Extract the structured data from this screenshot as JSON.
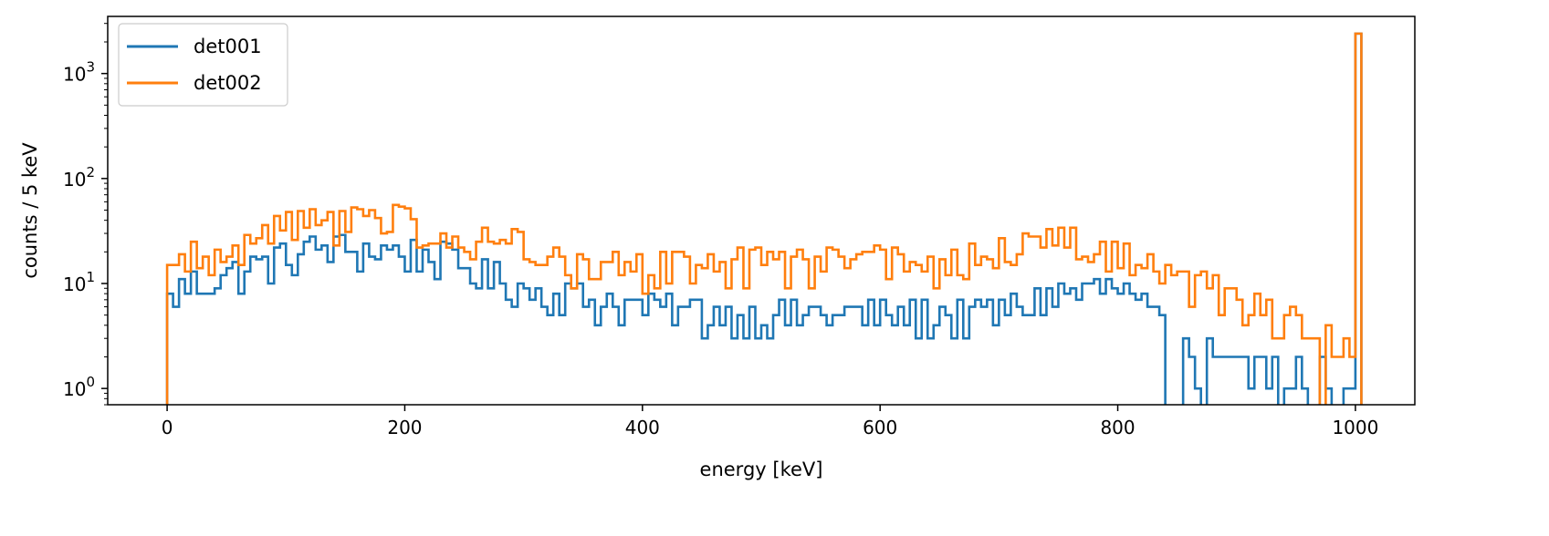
{
  "chart_data": {
    "type": "histogram",
    "title": "",
    "xlabel": "energy [keV]",
    "ylabel": "counts / 5 keV",
    "xscale": "linear",
    "yscale": "log",
    "xlim": [
      -50,
      1050
    ],
    "ylim": [
      0.7,
      3500
    ],
    "x_ticks": [
      0,
      200,
      400,
      600,
      800,
      1000
    ],
    "x_tick_labels": [
      "0",
      "200",
      "400",
      "600",
      "800",
      "1000"
    ],
    "y_ticks": [
      1,
      10,
      100,
      1000
    ],
    "y_tick_labels": [
      {
        "base": "10",
        "exp": "0"
      },
      {
        "base": "10",
        "exp": "1"
      },
      {
        "base": "10",
        "exp": "2"
      },
      {
        "base": "10",
        "exp": "3"
      }
    ],
    "bin_width_kev": 5,
    "grid": false,
    "legend_position": "top-left",
    "series": [
      {
        "name": "det001",
        "color": "#1f77b4",
        "bins_start": 0,
        "peak": {
          "x": 1000,
          "counts": 2400
        },
        "profile": [
          [
            0,
            6
          ],
          [
            10,
            9
          ],
          [
            50,
            12
          ],
          [
            100,
            18
          ],
          [
            130,
            22
          ],
          [
            200,
            20
          ],
          [
            230,
            18
          ],
          [
            260,
            13
          ],
          [
            300,
            9
          ],
          [
            400,
            6
          ],
          [
            500,
            5
          ],
          [
            600,
            5
          ],
          [
            680,
            5
          ],
          [
            750,
            8
          ],
          [
            800,
            9
          ],
          [
            820,
            6
          ],
          [
            850,
            2.5
          ],
          [
            880,
            2
          ],
          [
            920,
            1.5
          ],
          [
            995,
            1.2
          ]
        ]
      },
      {
        "name": "det002",
        "color": "#ff7f0e",
        "bins_start": 0,
        "peak": {
          "x": 1000,
          "counts": 2400
        },
        "profile": [
          [
            0,
            12
          ],
          [
            20,
            18
          ],
          [
            60,
            22
          ],
          [
            100,
            35
          ],
          [
            140,
            40
          ],
          [
            200,
            42
          ],
          [
            230,
            35
          ],
          [
            260,
            28
          ],
          [
            300,
            22
          ],
          [
            340,
            16
          ],
          [
            400,
            14
          ],
          [
            500,
            16
          ],
          [
            600,
            16
          ],
          [
            660,
            15
          ],
          [
            700,
            20
          ],
          [
            760,
            24
          ],
          [
            800,
            19
          ],
          [
            840,
            12
          ],
          [
            880,
            9
          ],
          [
            920,
            6
          ],
          [
            950,
            4
          ],
          [
            980,
            3
          ],
          [
            995,
            2.5
          ]
        ]
      }
    ]
  }
}
